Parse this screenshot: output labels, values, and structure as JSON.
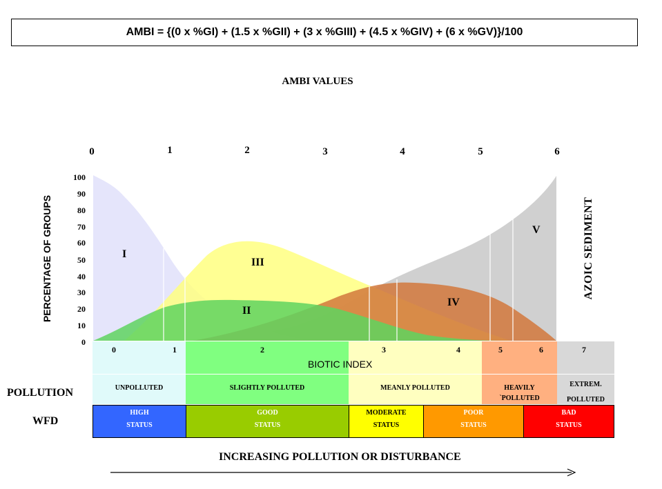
{
  "formula": "AMBI = {(0 x %GI) + (1.5 x %GII) + (3 x %GIII) + (4.5 x %GIV) + (6 x %GV)}/100",
  "ambi_title": "AMBI VALUES",
  "ambi_ticks": [
    "0",
    "1",
    "2",
    "3",
    "4",
    "5",
    "6"
  ],
  "y_axis_label": "PERCENTAGE OF GROUPS",
  "y_ticks": [
    "100",
    "90",
    "80",
    "70",
    "60",
    "50",
    "40",
    "30",
    "20",
    "10",
    "0"
  ],
  "groups": [
    "I",
    "II",
    "III",
    "IV",
    "V"
  ],
  "azoic_label": "AZOIC SEDIMENT",
  "group_colors": {
    "I": "#e0e0fa",
    "II": "#5fd35f",
    "III": "#ffff80",
    "IV": "#d2783c",
    "V": "#d0d0d0"
  },
  "biotic_index": {
    "label": "BIOTIC INDEX",
    "numbers": [
      "0",
      "1",
      "2",
      "3",
      "4",
      "5",
      "6",
      "7"
    ]
  },
  "pollution": {
    "row_label": "POLLUTION",
    "categories": [
      {
        "text": "UNPOLLUTED",
        "color": "#e0fafa"
      },
      {
        "text": "SLIGHTLY POLLUTED",
        "color": "#80ff80"
      },
      {
        "text": "MEANLY POLLUTED",
        "color": "#ffffc0"
      },
      {
        "line1": "HEAVILY",
        "line2": "`POLLUTED",
        "color": "#ffb080"
      },
      {
        "line1": "EXTREM.",
        "line2": "POLLUTED",
        "color": "#d8d8d8"
      }
    ]
  },
  "wfd": {
    "row_label": "WFD",
    "statuses": [
      {
        "line1": "HIGH",
        "line2": "STATUS",
        "color": "#3366ff",
        "text_color": "#ffffff"
      },
      {
        "line1": "GOOD",
        "line2": "STATUS",
        "color": "#99cc00",
        "text_color": "#ffffff"
      },
      {
        "line1": "MODERATE",
        "line2": "STATUS",
        "color": "#ffff00",
        "text_color": "#000000"
      },
      {
        "line1": "POOR",
        "line2": "STATUS",
        "color": "#ff9900",
        "text_color": "#ffffff"
      },
      {
        "line1": "BAD",
        "line2": "STATUS",
        "color": "#ff0000",
        "text_color": "#ffffff"
      }
    ]
  },
  "bottom_label": "INCREASING POLLUTION OR DISTURBANCE"
}
